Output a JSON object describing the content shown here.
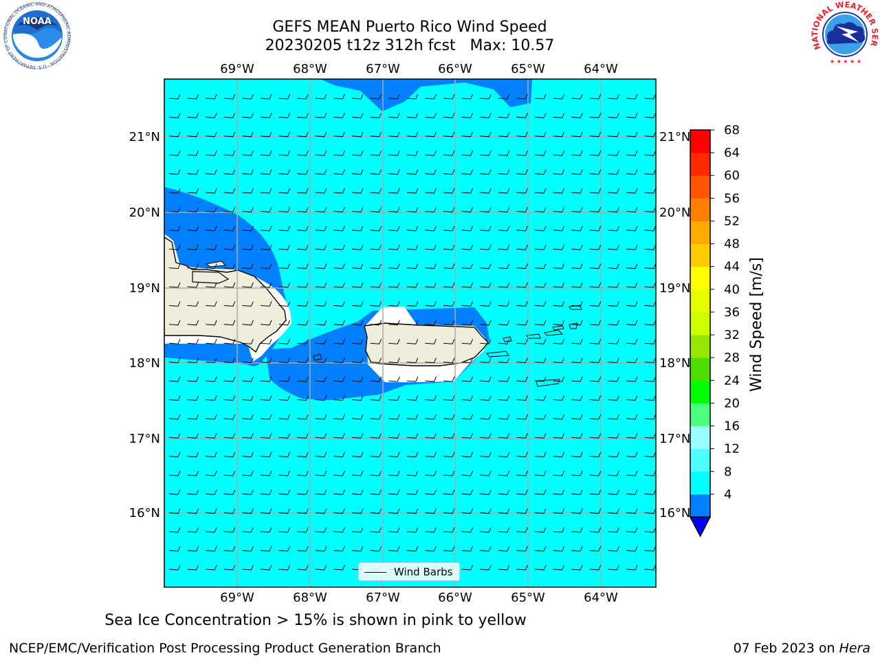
{
  "header": {
    "title_line1": "GEFS MEAN Puerto Rico Wind Speed",
    "title_line2": "20230205 t12z 312h fcst   Max: 10.57"
  },
  "map": {
    "lon_labels": [
      "69°W",
      "68°W",
      "67°W",
      "66°W",
      "65°W",
      "64°W"
    ],
    "lat_labels": [
      "21°N",
      "20°N",
      "19°N",
      "18°N",
      "17°N",
      "16°N"
    ],
    "ocean_color": "#00ffff",
    "low_wind_color": "#0080ff",
    "land_color": "#efeedc",
    "legend_label": "Wind Barbs"
  },
  "colorbar": {
    "label": "Wind Speed [m/s]",
    "ticks": [
      "68",
      "64",
      "60",
      "56",
      "52",
      "48",
      "44",
      "40",
      "36",
      "32",
      "28",
      "24",
      "20",
      "16",
      "12",
      "8",
      "4"
    ],
    "colors": [
      "#0000ff",
      "#0080ff",
      "#00ffff",
      "#4dffff",
      "#99ffff",
      "#4dff80",
      "#00ff00",
      "#4ddd00",
      "#99e600",
      "#ccff00",
      "#e5ff00",
      "#ffff00",
      "#ffcc00",
      "#ffaa00",
      "#ff8000",
      "#ff5500",
      "#ff2a00",
      "#ff0000"
    ]
  },
  "footer": {
    "subtitle": "Sea Ice Concentration > 15% is shown in pink to yellow",
    "left": "NCEP/EMC/Verification Post Processing Product Generation Branch",
    "right_prefix": "07 Feb 2023 on ",
    "right_host": "Hera"
  },
  "logos": {
    "noaa_text": "NOAA",
    "noaa_ring": "NATIONAL OCEANIC AND ATMOSPHERIC ADMINISTRATION · U.S. DEPARTMENT OF COMMERCE",
    "nws_ring": "NATIONAL WEATHER SERVICE"
  }
}
